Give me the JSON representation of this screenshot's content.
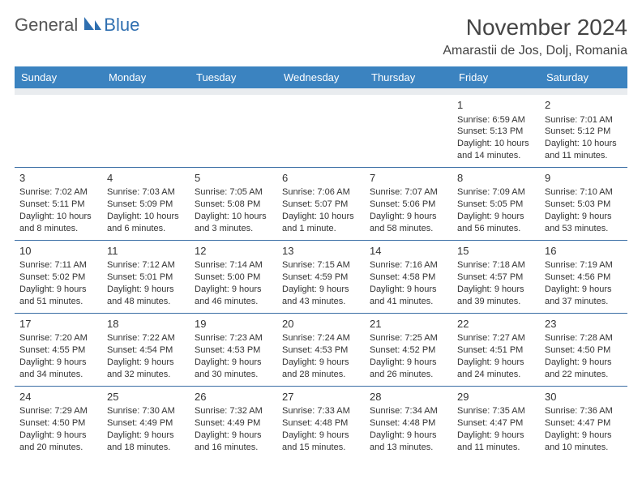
{
  "logo": {
    "text1": "General",
    "text2": "Blue"
  },
  "header": {
    "title": "November 2024",
    "location": "Amarastii de Jos, Dolj, Romania"
  },
  "colors": {
    "headerBg": "#3b83c0",
    "spacerBg": "#e9ecef",
    "rowBorder": "#3b6ea5",
    "logoBlue": "#2f6fb0"
  },
  "dayNames": [
    "Sunday",
    "Monday",
    "Tuesday",
    "Wednesday",
    "Thursday",
    "Friday",
    "Saturday"
  ],
  "weeks": [
    [
      null,
      null,
      null,
      null,
      null,
      {
        "n": "1",
        "sr": "Sunrise: 6:59 AM",
        "ss": "Sunset: 5:13 PM",
        "d1": "Daylight: 10 hours",
        "d2": "and 14 minutes."
      },
      {
        "n": "2",
        "sr": "Sunrise: 7:01 AM",
        "ss": "Sunset: 5:12 PM",
        "d1": "Daylight: 10 hours",
        "d2": "and 11 minutes."
      }
    ],
    [
      {
        "n": "3",
        "sr": "Sunrise: 7:02 AM",
        "ss": "Sunset: 5:11 PM",
        "d1": "Daylight: 10 hours",
        "d2": "and 8 minutes."
      },
      {
        "n": "4",
        "sr": "Sunrise: 7:03 AM",
        "ss": "Sunset: 5:09 PM",
        "d1": "Daylight: 10 hours",
        "d2": "and 6 minutes."
      },
      {
        "n": "5",
        "sr": "Sunrise: 7:05 AM",
        "ss": "Sunset: 5:08 PM",
        "d1": "Daylight: 10 hours",
        "d2": "and 3 minutes."
      },
      {
        "n": "6",
        "sr": "Sunrise: 7:06 AM",
        "ss": "Sunset: 5:07 PM",
        "d1": "Daylight: 10 hours",
        "d2": "and 1 minute."
      },
      {
        "n": "7",
        "sr": "Sunrise: 7:07 AM",
        "ss": "Sunset: 5:06 PM",
        "d1": "Daylight: 9 hours",
        "d2": "and 58 minutes."
      },
      {
        "n": "8",
        "sr": "Sunrise: 7:09 AM",
        "ss": "Sunset: 5:05 PM",
        "d1": "Daylight: 9 hours",
        "d2": "and 56 minutes."
      },
      {
        "n": "9",
        "sr": "Sunrise: 7:10 AM",
        "ss": "Sunset: 5:03 PM",
        "d1": "Daylight: 9 hours",
        "d2": "and 53 minutes."
      }
    ],
    [
      {
        "n": "10",
        "sr": "Sunrise: 7:11 AM",
        "ss": "Sunset: 5:02 PM",
        "d1": "Daylight: 9 hours",
        "d2": "and 51 minutes."
      },
      {
        "n": "11",
        "sr": "Sunrise: 7:12 AM",
        "ss": "Sunset: 5:01 PM",
        "d1": "Daylight: 9 hours",
        "d2": "and 48 minutes."
      },
      {
        "n": "12",
        "sr": "Sunrise: 7:14 AM",
        "ss": "Sunset: 5:00 PM",
        "d1": "Daylight: 9 hours",
        "d2": "and 46 minutes."
      },
      {
        "n": "13",
        "sr": "Sunrise: 7:15 AM",
        "ss": "Sunset: 4:59 PM",
        "d1": "Daylight: 9 hours",
        "d2": "and 43 minutes."
      },
      {
        "n": "14",
        "sr": "Sunrise: 7:16 AM",
        "ss": "Sunset: 4:58 PM",
        "d1": "Daylight: 9 hours",
        "d2": "and 41 minutes."
      },
      {
        "n": "15",
        "sr": "Sunrise: 7:18 AM",
        "ss": "Sunset: 4:57 PM",
        "d1": "Daylight: 9 hours",
        "d2": "and 39 minutes."
      },
      {
        "n": "16",
        "sr": "Sunrise: 7:19 AM",
        "ss": "Sunset: 4:56 PM",
        "d1": "Daylight: 9 hours",
        "d2": "and 37 minutes."
      }
    ],
    [
      {
        "n": "17",
        "sr": "Sunrise: 7:20 AM",
        "ss": "Sunset: 4:55 PM",
        "d1": "Daylight: 9 hours",
        "d2": "and 34 minutes."
      },
      {
        "n": "18",
        "sr": "Sunrise: 7:22 AM",
        "ss": "Sunset: 4:54 PM",
        "d1": "Daylight: 9 hours",
        "d2": "and 32 minutes."
      },
      {
        "n": "19",
        "sr": "Sunrise: 7:23 AM",
        "ss": "Sunset: 4:53 PM",
        "d1": "Daylight: 9 hours",
        "d2": "and 30 minutes."
      },
      {
        "n": "20",
        "sr": "Sunrise: 7:24 AM",
        "ss": "Sunset: 4:53 PM",
        "d1": "Daylight: 9 hours",
        "d2": "and 28 minutes."
      },
      {
        "n": "21",
        "sr": "Sunrise: 7:25 AM",
        "ss": "Sunset: 4:52 PM",
        "d1": "Daylight: 9 hours",
        "d2": "and 26 minutes."
      },
      {
        "n": "22",
        "sr": "Sunrise: 7:27 AM",
        "ss": "Sunset: 4:51 PM",
        "d1": "Daylight: 9 hours",
        "d2": "and 24 minutes."
      },
      {
        "n": "23",
        "sr": "Sunrise: 7:28 AM",
        "ss": "Sunset: 4:50 PM",
        "d1": "Daylight: 9 hours",
        "d2": "and 22 minutes."
      }
    ],
    [
      {
        "n": "24",
        "sr": "Sunrise: 7:29 AM",
        "ss": "Sunset: 4:50 PM",
        "d1": "Daylight: 9 hours",
        "d2": "and 20 minutes."
      },
      {
        "n": "25",
        "sr": "Sunrise: 7:30 AM",
        "ss": "Sunset: 4:49 PM",
        "d1": "Daylight: 9 hours",
        "d2": "and 18 minutes."
      },
      {
        "n": "26",
        "sr": "Sunrise: 7:32 AM",
        "ss": "Sunset: 4:49 PM",
        "d1": "Daylight: 9 hours",
        "d2": "and 16 minutes."
      },
      {
        "n": "27",
        "sr": "Sunrise: 7:33 AM",
        "ss": "Sunset: 4:48 PM",
        "d1": "Daylight: 9 hours",
        "d2": "and 15 minutes."
      },
      {
        "n": "28",
        "sr": "Sunrise: 7:34 AM",
        "ss": "Sunset: 4:48 PM",
        "d1": "Daylight: 9 hours",
        "d2": "and 13 minutes."
      },
      {
        "n": "29",
        "sr": "Sunrise: 7:35 AM",
        "ss": "Sunset: 4:47 PM",
        "d1": "Daylight: 9 hours",
        "d2": "and 11 minutes."
      },
      {
        "n": "30",
        "sr": "Sunrise: 7:36 AM",
        "ss": "Sunset: 4:47 PM",
        "d1": "Daylight: 9 hours",
        "d2": "and 10 minutes."
      }
    ]
  ]
}
